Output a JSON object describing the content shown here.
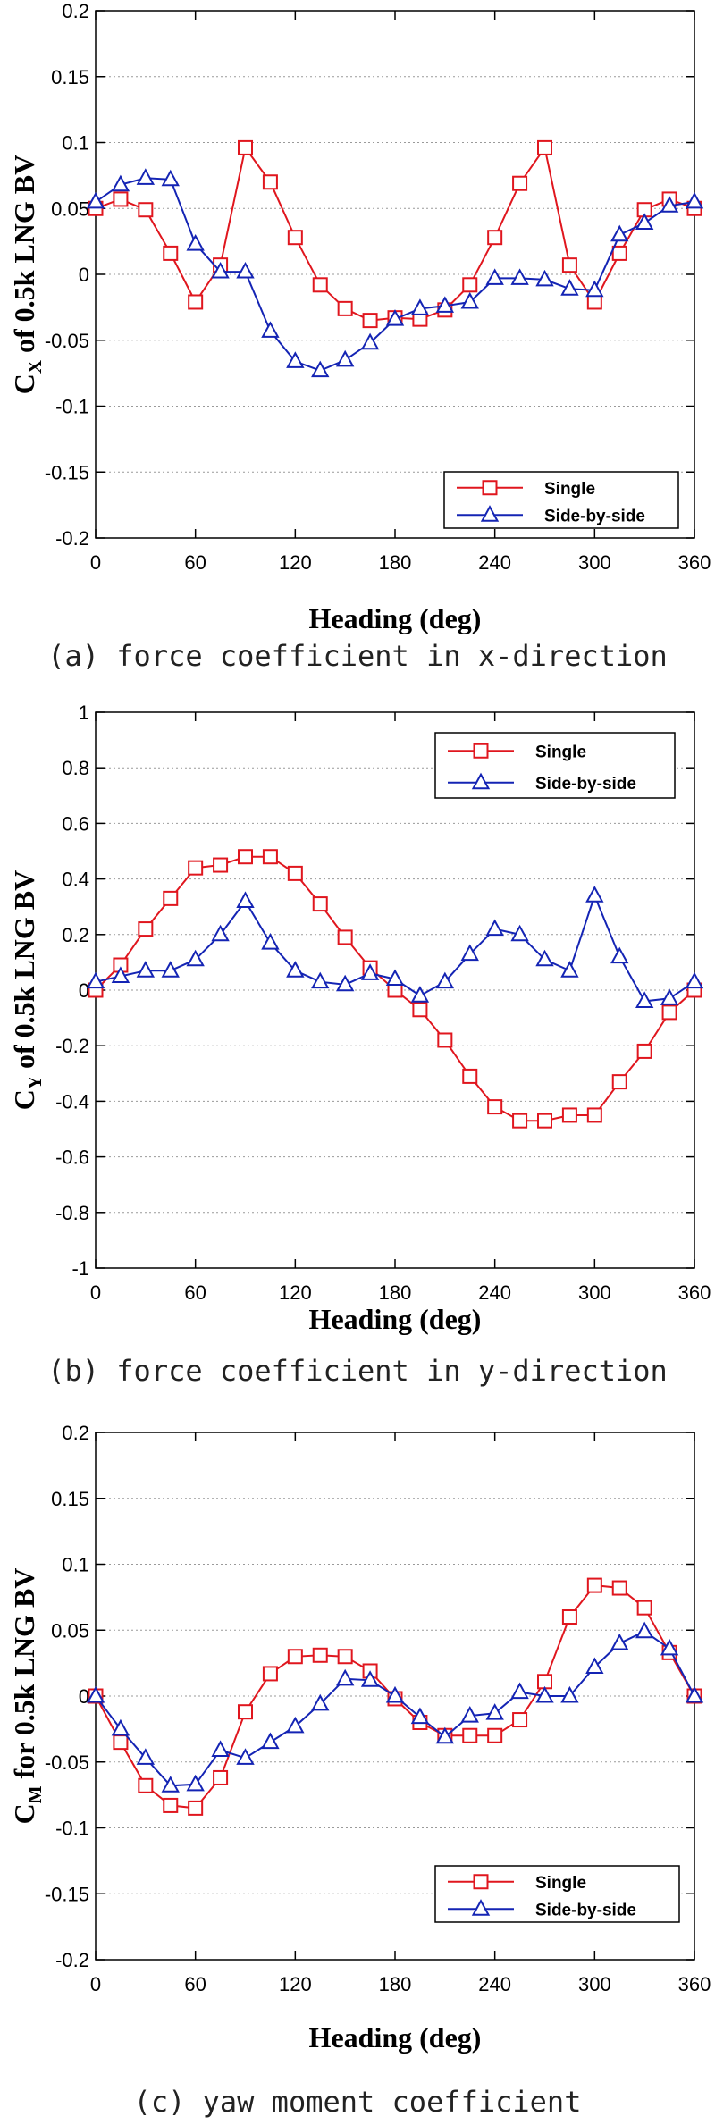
{
  "chart_data": [
    {
      "type": "line",
      "caption": "(a) force coefficient in x-direction",
      "xlabel": "Heading (deg)",
      "ylabel_main": "C",
      "ylabel_sub": "X",
      "ylabel_rest": " of 0.5k LNG BV",
      "xlim": [
        0,
        360
      ],
      "ylim": [
        -0.2,
        0.2
      ],
      "xticks": [
        0,
        60,
        120,
        180,
        240,
        300,
        360
      ],
      "yticks": [
        "-0.2",
        "-0.15",
        "-0.1",
        "-0.05",
        "0",
        "0.05",
        "0.1",
        "0.15",
        "0.2"
      ],
      "grid": true,
      "legend": "bottom-right",
      "x": [
        0,
        15,
        30,
        45,
        60,
        75,
        90,
        105,
        120,
        135,
        150,
        165,
        180,
        195,
        210,
        225,
        240,
        255,
        270,
        285,
        300,
        315,
        330,
        345,
        360
      ],
      "series": [
        {
          "name": "Single",
          "color": "#e0161e",
          "marker": "square",
          "values": [
            0.05,
            0.057,
            0.049,
            0.016,
            -0.021,
            0.007,
            0.096,
            0.07,
            0.028,
            -0.008,
            -0.026,
            -0.035,
            -0.033,
            -0.034,
            -0.027,
            -0.008,
            0.028,
            0.069,
            0.096,
            0.007,
            -0.021,
            0.016,
            0.049,
            0.057,
            0.05
          ]
        },
        {
          "name": "Side-by-side",
          "color": "#1424b4",
          "marker": "triangle",
          "values": [
            0.055,
            0.068,
            0.073,
            0.072,
            0.023,
            0.002,
            0.002,
            -0.043,
            -0.066,
            -0.073,
            -0.065,
            -0.052,
            -0.034,
            -0.026,
            -0.024,
            -0.021,
            -0.003,
            -0.003,
            -0.004,
            -0.011,
            -0.012,
            0.03,
            0.039,
            0.052,
            0.055
          ]
        }
      ]
    },
    {
      "type": "line",
      "caption": "(b) force coefficient in y-direction",
      "xlabel": "Heading (deg)",
      "ylabel_main": "C",
      "ylabel_sub": "Y",
      "ylabel_rest": " of 0.5k LNG BV",
      "xlim": [
        0,
        360
      ],
      "ylim": [
        -1,
        1
      ],
      "xticks": [
        0,
        60,
        120,
        180,
        240,
        300,
        360
      ],
      "yticks": [
        "-1",
        "-0.8",
        "-0.6",
        "-0.4",
        "-0.2",
        "0",
        "0.2",
        "0.4",
        "0.6",
        "0.8",
        "1"
      ],
      "grid": true,
      "legend": "top-right",
      "x": [
        0,
        15,
        30,
        45,
        60,
        75,
        90,
        105,
        120,
        135,
        150,
        165,
        180,
        195,
        210,
        225,
        240,
        255,
        270,
        285,
        300,
        315,
        330,
        345,
        360
      ],
      "series": [
        {
          "name": "Single",
          "color": "#e0161e",
          "marker": "square",
          "values": [
            0.0,
            0.09,
            0.22,
            0.33,
            0.44,
            0.45,
            0.48,
            0.48,
            0.42,
            0.31,
            0.19,
            0.08,
            0.0,
            -0.07,
            -0.18,
            -0.31,
            -0.42,
            -0.47,
            -0.47,
            -0.45,
            -0.45,
            -0.33,
            -0.22,
            -0.08,
            0.0
          ]
        },
        {
          "name": "Side-by-side",
          "color": "#1424b4",
          "marker": "triangle",
          "values": [
            0.03,
            0.05,
            0.07,
            0.07,
            0.11,
            0.2,
            0.32,
            0.17,
            0.07,
            0.03,
            0.02,
            0.06,
            0.04,
            -0.02,
            0.03,
            0.13,
            0.22,
            0.2,
            0.11,
            0.07,
            0.34,
            0.12,
            -0.04,
            -0.03,
            0.03
          ]
        }
      ]
    },
    {
      "type": "line",
      "caption": "(c) yaw moment coefficient",
      "xlabel": "Heading (deg)",
      "ylabel_main": "C",
      "ylabel_sub": "M",
      "ylabel_rest": " for 0.5k LNG BV",
      "xlim": [
        0,
        360
      ],
      "ylim": [
        -0.2,
        0.2
      ],
      "xticks": [
        0,
        60,
        120,
        180,
        240,
        300,
        360
      ],
      "yticks": [
        "-0.2",
        "-0.15",
        "-0.1",
        "-0.05",
        "0",
        "0.05",
        "0.1",
        "0.15",
        "0.2"
      ],
      "grid": true,
      "legend": "bottom-right",
      "x": [
        0,
        15,
        30,
        45,
        60,
        75,
        90,
        105,
        120,
        135,
        150,
        165,
        180,
        195,
        210,
        225,
        240,
        255,
        270,
        285,
        300,
        315,
        330,
        345,
        360
      ],
      "series": [
        {
          "name": "Single",
          "color": "#e0161e",
          "marker": "square",
          "values": [
            0.0,
            -0.035,
            -0.068,
            -0.083,
            -0.085,
            -0.062,
            -0.012,
            0.017,
            0.03,
            0.031,
            0.03,
            0.019,
            -0.002,
            -0.02,
            -0.03,
            -0.03,
            -0.03,
            -0.018,
            0.011,
            0.06,
            0.084,
            0.082,
            0.067,
            0.033,
            0.0
          ]
        },
        {
          "name": "Side-by-side",
          "color": "#1424b4",
          "marker": "triangle",
          "values": [
            0.0,
            -0.025,
            -0.047,
            -0.068,
            -0.067,
            -0.041,
            -0.047,
            -0.035,
            -0.023,
            -0.006,
            0.013,
            0.012,
            0.0,
            -0.016,
            -0.031,
            -0.015,
            -0.013,
            0.003,
            0.0,
            0.0,
            0.022,
            0.04,
            0.049,
            0.036,
            0.0
          ]
        }
      ]
    }
  ]
}
